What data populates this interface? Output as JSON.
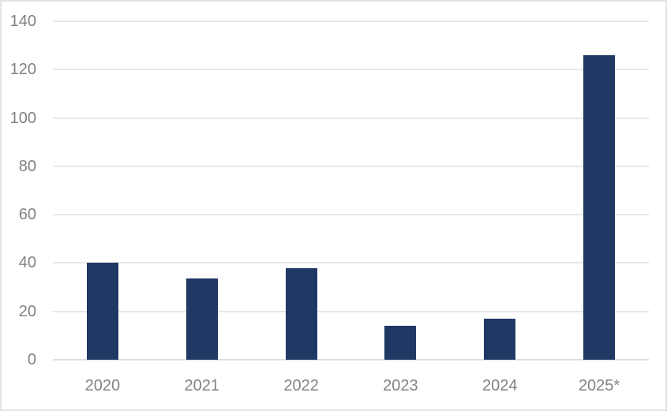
{
  "chart_data": {
    "type": "bar",
    "title": "",
    "xlabel": "",
    "ylabel": "",
    "categories": [
      "2020",
      "2021",
      "2022",
      "2023",
      "2024",
      "2025*"
    ],
    "values": [
      40,
      33.5,
      38,
      14,
      17,
      126
    ],
    "ylim": [
      0,
      140
    ],
    "yticks": [
      0,
      20,
      40,
      60,
      80,
      100,
      120,
      140
    ],
    "grid": true,
    "legend": "none",
    "colors": {
      "bar": "#1f3864",
      "gridline": "#e7e7e7",
      "baseline": "#dedede",
      "tick_label": "#828282",
      "background": "#ffffff",
      "canvas_border": "#e3e3e3"
    }
  }
}
